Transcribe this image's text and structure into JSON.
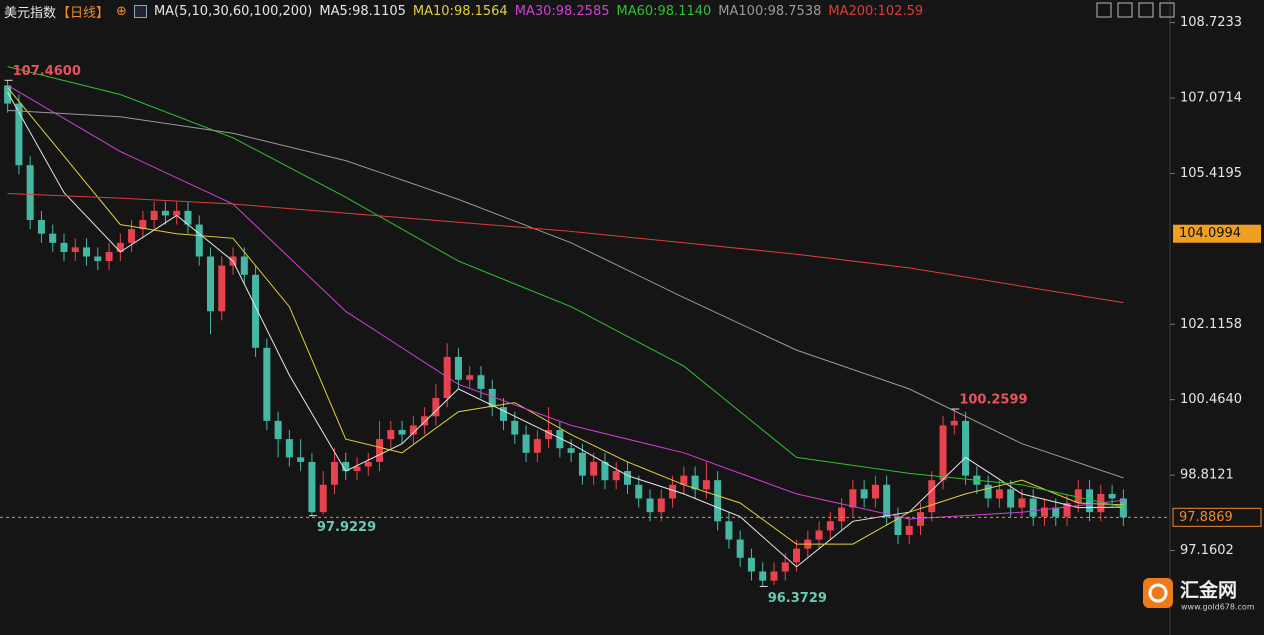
{
  "chart_data": {
    "type": "candlestick",
    "title": "美元指数",
    "period": "【日线】",
    "indicator": "MA(5,10,30,60,100,200)",
    "up_color": "#e8424f",
    "down_color": "#45b8a4",
    "open": [
      107.35,
      106.95,
      105.6,
      104.4,
      104.1,
      103.9,
      103.7,
      103.8,
      103.6,
      103.5,
      103.7,
      103.9,
      104.2,
      104.4,
      104.6,
      104.5,
      104.6,
      104.3,
      103.6,
      102.4,
      103.4,
      103.6,
      103.2,
      101.6,
      100.0,
      99.6,
      99.2,
      99.1,
      98.0,
      98.6,
      99.1,
      98.9,
      99.0,
      99.1,
      99.6,
      99.8,
      99.7,
      99.9,
      100.1,
      100.5,
      101.4,
      100.9,
      101.0,
      100.7,
      100.3,
      100.0,
      99.7,
      99.3,
      99.6,
      99.8,
      99.4,
      99.3,
      98.8,
      99.1,
      98.7,
      98.9,
      98.6,
      98.3,
      98.0,
      98.3,
      98.6,
      98.8,
      98.5,
      98.7,
      97.8,
      97.4,
      97.0,
      96.7,
      96.5,
      96.7,
      96.9,
      97.2,
      97.4,
      97.6,
      97.8,
      98.1,
      98.5,
      98.3,
      98.6,
      97.9,
      97.5,
      97.7,
      98.0,
      98.7,
      99.9,
      100.0,
      98.8,
      98.6,
      98.3,
      98.5,
      98.1,
      98.3,
      97.9,
      98.1,
      97.9,
      98.2,
      98.5,
      98.0,
      98.4,
      98.3
    ],
    "high": [
      107.46,
      107.15,
      105.8,
      104.6,
      104.3,
      104.1,
      104.0,
      104.0,
      103.8,
      103.9,
      104.1,
      104.4,
      104.6,
      104.8,
      104.8,
      104.8,
      104.8,
      104.5,
      103.8,
      103.6,
      103.8,
      103.8,
      103.4,
      101.8,
      100.2,
      99.8,
      99.6,
      99.3,
      98.9,
      99.4,
      99.3,
      99.2,
      99.3,
      100.0,
      100.0,
      100.0,
      100.1,
      100.3,
      100.8,
      101.7,
      101.6,
      101.2,
      101.2,
      100.9,
      100.5,
      100.2,
      99.9,
      99.8,
      100.3,
      100.0,
      99.6,
      99.5,
      99.3,
      99.3,
      99.1,
      99.1,
      98.8,
      98.5,
      98.5,
      98.8,
      99.0,
      99.0,
      99.1,
      98.9,
      98.0,
      97.6,
      97.2,
      96.9,
      96.9,
      97.1,
      97.4,
      97.6,
      97.8,
      98.0,
      98.3,
      98.7,
      98.7,
      98.8,
      98.8,
      98.1,
      97.9,
      98.2,
      98.9,
      100.1,
      100.2599,
      100.2,
      99.0,
      98.8,
      98.7,
      98.7,
      98.5,
      98.5,
      98.3,
      98.3,
      98.4,
      98.7,
      98.7,
      98.6,
      98.6,
      98.5
    ],
    "low": [
      106.75,
      105.4,
      104.2,
      103.9,
      103.7,
      103.5,
      103.5,
      103.4,
      103.3,
      103.3,
      103.5,
      103.7,
      104.0,
      104.2,
      104.3,
      104.3,
      104.1,
      103.4,
      101.9,
      102.2,
      103.2,
      103.0,
      101.4,
      99.8,
      99.2,
      99.0,
      98.9,
      97.9229,
      97.95,
      98.4,
      98.7,
      98.7,
      98.8,
      98.9,
      99.4,
      99.5,
      99.5,
      99.7,
      99.9,
      100.3,
      100.7,
      100.7,
      100.5,
      100.1,
      99.8,
      99.5,
      99.1,
      99.1,
      99.4,
      99.2,
      99.1,
      98.6,
      98.6,
      98.5,
      98.5,
      98.4,
      98.1,
      97.8,
      97.8,
      98.1,
      98.4,
      98.3,
      98.3,
      97.6,
      97.2,
      96.8,
      96.5,
      96.3729,
      96.4,
      96.5,
      96.7,
      97.0,
      97.2,
      97.4,
      97.6,
      97.9,
      98.1,
      98.1,
      97.7,
      97.3,
      97.3,
      97.5,
      97.8,
      98.5,
      99.7,
      98.6,
      98.4,
      98.1,
      98.1,
      97.9,
      97.9,
      97.7,
      97.7,
      97.7,
      97.7,
      98.0,
      97.8,
      97.8,
      98.1,
      97.7
    ],
    "close": [
      106.95,
      105.6,
      104.4,
      104.1,
      103.9,
      103.7,
      103.8,
      103.6,
      103.5,
      103.7,
      103.9,
      104.2,
      104.4,
      104.6,
      104.5,
      104.6,
      104.3,
      103.6,
      102.4,
      103.4,
      103.6,
      103.2,
      101.6,
      100.0,
      99.6,
      99.2,
      99.1,
      98.0,
      98.6,
      99.1,
      98.9,
      99.0,
      99.1,
      99.6,
      99.8,
      99.7,
      99.9,
      100.1,
      100.5,
      101.4,
      100.9,
      101.0,
      100.7,
      100.3,
      100.0,
      99.7,
      99.3,
      99.6,
      99.8,
      99.4,
      99.3,
      98.8,
      99.1,
      98.7,
      98.9,
      98.6,
      98.3,
      98.0,
      98.3,
      98.6,
      98.8,
      98.5,
      98.7,
      97.8,
      97.4,
      97.0,
      96.7,
      96.5,
      96.7,
      96.9,
      97.2,
      97.4,
      97.6,
      97.8,
      98.1,
      98.5,
      98.3,
      98.6,
      97.9,
      97.5,
      97.7,
      98.0,
      98.7,
      99.9,
      100.0,
      98.8,
      98.6,
      98.3,
      98.5,
      98.1,
      98.3,
      97.9,
      98.1,
      97.9,
      98.2,
      98.5,
      98.0,
      98.4,
      98.3,
      97.8869
    ],
    "series": [
      {
        "name": "MA5:98.1105",
        "color": "#e6e6e6",
        "x": [
          0,
          5,
          10,
          15,
          20,
          25,
          30,
          35,
          40,
          45,
          50,
          55,
          60,
          65,
          70,
          75,
          80,
          85,
          90,
          95,
          99
        ],
        "values": [
          107.2,
          105.0,
          103.7,
          104.5,
          103.5,
          101.0,
          98.9,
          99.5,
          100.7,
          100.1,
          99.5,
          98.8,
          98.4,
          97.9,
          96.8,
          97.8,
          98.0,
          99.2,
          98.4,
          98.1,
          98.11
        ]
      },
      {
        "name": "MA10:98.1564",
        "color": "#e3d03a",
        "x": [
          0,
          5,
          10,
          15,
          20,
          25,
          30,
          35,
          40,
          45,
          50,
          55,
          60,
          65,
          70,
          75,
          80,
          85,
          90,
          95,
          99
        ],
        "values": [
          107.3,
          105.8,
          104.3,
          104.1,
          104.0,
          102.5,
          99.6,
          99.3,
          100.2,
          100.4,
          99.7,
          99.1,
          98.6,
          98.2,
          97.3,
          97.3,
          98.0,
          98.4,
          98.7,
          98.2,
          98.16
        ]
      },
      {
        "name": "MA30:98.2585",
        "color": "#d23fd6",
        "x": [
          0,
          10,
          20,
          30,
          40,
          50,
          60,
          70,
          80,
          90,
          99
        ],
        "values": [
          107.35,
          105.9,
          104.75,
          102.4,
          100.8,
          99.9,
          99.3,
          98.4,
          97.85,
          98.0,
          98.26
        ]
      },
      {
        "name": "MA60:98.1140",
        "color": "#2fc12f",
        "x": [
          0,
          10,
          20,
          30,
          40,
          50,
          60,
          70,
          80,
          90,
          99
        ],
        "values": [
          107.76,
          107.15,
          106.2,
          104.9,
          103.5,
          102.5,
          101.2,
          99.2,
          98.85,
          98.6,
          98.11
        ]
      },
      {
        "name": "MA100:98.7538",
        "color": "#9a9a9a",
        "x": [
          0,
          10,
          20,
          30,
          40,
          50,
          60,
          70,
          80,
          90,
          99
        ],
        "values": [
          106.8,
          106.66,
          106.3,
          105.7,
          104.85,
          103.9,
          102.7,
          101.55,
          100.7,
          99.5,
          98.75
        ]
      },
      {
        "name": "MA200:102.59",
        "color": "#e03b3b",
        "x": [
          0,
          10,
          20,
          30,
          40,
          50,
          60,
          70,
          80,
          90,
          99
        ],
        "values": [
          104.98,
          104.88,
          104.75,
          104.55,
          104.35,
          104.15,
          103.9,
          103.65,
          103.35,
          102.95,
          102.59
        ]
      }
    ],
    "annotations": [
      {
        "x": 0,
        "y": 107.46,
        "label": "107.4600"
      },
      {
        "x": 27,
        "y": 97.9229,
        "label": "97.9229"
      },
      {
        "x": 67,
        "y": 96.3729,
        "label": "96.3729"
      },
      {
        "x": 84,
        "y": 100.2599,
        "label": "100.2599"
      }
    ],
    "last_price": 97.8869,
    "marker": 104.0994,
    "ylim": [
      95.55,
      109.0
    ],
    "yticks": [
      108.7233,
      107.0714,
      105.4195,
      102.1158,
      100.464,
      98.8121,
      97.1602
    ],
    "ytick_labels": [
      "108.7233",
      "107.0714",
      "105.4195",
      "102.1158",
      "100.4640",
      "98.8121",
      "97.1602"
    ],
    "watermark": {
      "name": "汇金网",
      "url": "www.gold678.com"
    }
  }
}
